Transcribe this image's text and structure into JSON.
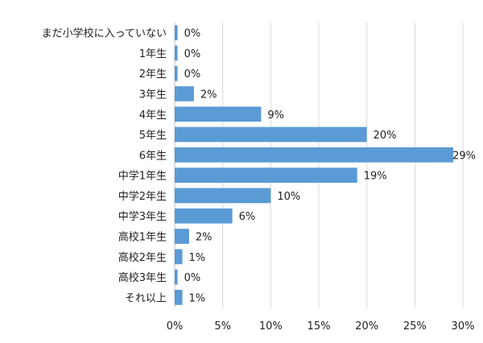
{
  "chart_data": {
    "type": "bar",
    "orientation": "horizontal",
    "title": "",
    "xlabel": "",
    "ylabel": "",
    "xlim": [
      0,
      30
    ],
    "grid": true,
    "bar_color": "#5b9bd5",
    "categories": [
      "まだ小学校に入っていない",
      "1年生",
      "2年生",
      "3年生",
      "4年生",
      "5年生",
      "6年生",
      "中学1年生",
      "中学2年生",
      "中学3年生",
      "高校1年生",
      "高校2年生",
      "高校3年生",
      "それ以上"
    ],
    "values": [
      0.3,
      0.3,
      0.3,
      2,
      9,
      20,
      29,
      19,
      10,
      6,
      1.5,
      0.8,
      0.3,
      0.8
    ],
    "data_labels": [
      "0%",
      "0%",
      "0%",
      "2%",
      "9%",
      "20%",
      "29%",
      "19%",
      "10%",
      "6%",
      "2%",
      "1%",
      "0%",
      "1%"
    ],
    "x_ticks": [
      0,
      5,
      10,
      15,
      20,
      25,
      30
    ],
    "x_tick_labels": [
      "0%",
      "5%",
      "10%",
      "15%",
      "20%",
      "25%",
      "30%"
    ]
  }
}
